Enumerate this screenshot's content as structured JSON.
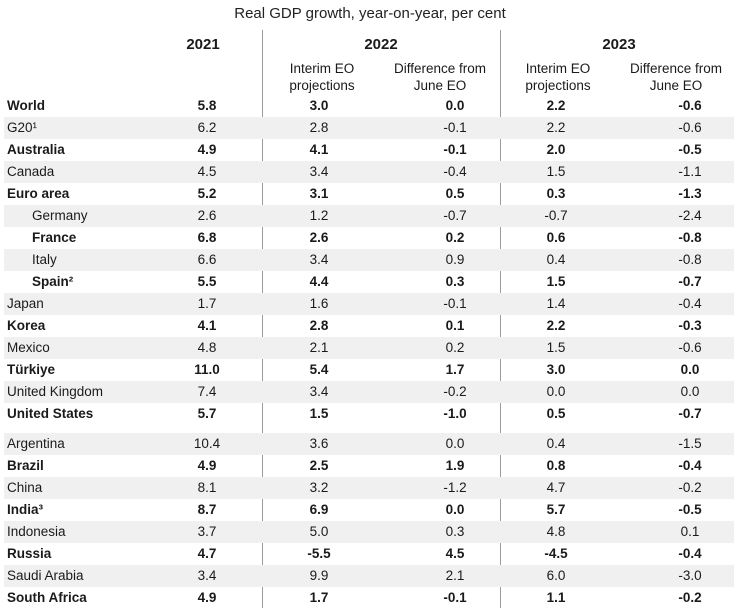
{
  "title": "Real GDP growth, year-on-year, per cent",
  "headers": {
    "y2021": "2021",
    "y2022": "2022",
    "y2023": "2023",
    "interim_2022": [
      "Interim EO",
      "projections"
    ],
    "diff_2022": [
      "Difference from",
      "June EO"
    ],
    "interim_2023": [
      "Interim EO",
      "projections"
    ],
    "diff_2023": [
      "Difference from",
      "June EO"
    ]
  },
  "rows": [
    {
      "name": "World",
      "bold": true,
      "indent": false,
      "v2021": "5.8",
      "i22": "3.0",
      "d22": "0.0",
      "i23": "2.2",
      "d23": "-0.6"
    },
    {
      "name": "G20¹",
      "bold": false,
      "indent": false,
      "v2021": "6.2",
      "i22": "2.8",
      "d22": "-0.1",
      "i23": "2.2",
      "d23": "-0.6"
    },
    {
      "name": "Australia",
      "bold": true,
      "indent": false,
      "v2021": "4.9",
      "i22": "4.1",
      "d22": "-0.1",
      "i23": "2.0",
      "d23": "-0.5"
    },
    {
      "name": "Canada",
      "bold": false,
      "indent": false,
      "v2021": "4.5",
      "i22": "3.4",
      "d22": "-0.4",
      "i23": "1.5",
      "d23": "-1.1"
    },
    {
      "name": "Euro area",
      "bold": true,
      "indent": false,
      "v2021": "5.2",
      "i22": "3.1",
      "d22": "0.5",
      "i23": "0.3",
      "d23": "-1.3"
    },
    {
      "name": "Germany",
      "bold": false,
      "indent": true,
      "v2021": "2.6",
      "i22": "1.2",
      "d22": "-0.7",
      "i23": "-0.7",
      "d23": "-2.4"
    },
    {
      "name": "France",
      "bold": true,
      "indent": true,
      "v2021": "6.8",
      "i22": "2.6",
      "d22": "0.2",
      "i23": "0.6",
      "d23": "-0.8"
    },
    {
      "name": "Italy",
      "bold": false,
      "indent": true,
      "v2021": "6.6",
      "i22": "3.4",
      "d22": "0.9",
      "i23": "0.4",
      "d23": "-0.8"
    },
    {
      "name": "Spain²",
      "bold": true,
      "indent": true,
      "v2021": "5.5",
      "i22": "4.4",
      "d22": "0.3",
      "i23": "1.5",
      "d23": "-0.7"
    },
    {
      "name": "Japan",
      "bold": false,
      "indent": false,
      "v2021": "1.7",
      "i22": "1.6",
      "d22": "-0.1",
      "i23": "1.4",
      "d23": "-0.4"
    },
    {
      "name": "Korea",
      "bold": true,
      "indent": false,
      "v2021": "4.1",
      "i22": "2.8",
      "d22": "0.1",
      "i23": "2.2",
      "d23": "-0.3"
    },
    {
      "name": "Mexico",
      "bold": false,
      "indent": false,
      "v2021": "4.8",
      "i22": "2.1",
      "d22": "0.2",
      "i23": "1.5",
      "d23": "-0.6"
    },
    {
      "name": "Türkiye",
      "bold": true,
      "indent": false,
      "v2021": "11.0",
      "i22": "5.4",
      "d22": "1.7",
      "i23": "3.0",
      "d23": "0.0"
    },
    {
      "name": "United Kingdom",
      "bold": false,
      "indent": false,
      "v2021": "7.4",
      "i22": "3.4",
      "d22": "-0.2",
      "i23": "0.0",
      "d23": "0.0"
    },
    {
      "name": "United States",
      "bold": true,
      "indent": false,
      "v2021": "5.7",
      "i22": "1.5",
      "d22": "-1.0",
      "i23": "0.5",
      "d23": "-0.7"
    },
    {
      "name": "Argentina",
      "bold": false,
      "indent": false,
      "v2021": "10.4",
      "i22": "3.6",
      "d22": "0.0",
      "i23": "0.4",
      "d23": "-1.5"
    },
    {
      "name": "Brazil",
      "bold": true,
      "indent": false,
      "v2021": "4.9",
      "i22": "2.5",
      "d22": "1.9",
      "i23": "0.8",
      "d23": "-0.4"
    },
    {
      "name": "China",
      "bold": false,
      "indent": false,
      "v2021": "8.1",
      "i22": "3.2",
      "d22": "-1.2",
      "i23": "4.7",
      "d23": "-0.2"
    },
    {
      "name": "India³",
      "bold": true,
      "indent": false,
      "v2021": "8.7",
      "i22": "6.9",
      "d22": "0.0",
      "i23": "5.7",
      "d23": "-0.5"
    },
    {
      "name": "Indonesia",
      "bold": false,
      "indent": false,
      "v2021": "3.7",
      "i22": "5.0",
      "d22": "0.3",
      "i23": "4.8",
      "d23": "0.1"
    },
    {
      "name": "Russia",
      "bold": true,
      "indent": false,
      "v2021": "4.7",
      "i22": "-5.5",
      "d22": "4.5",
      "i23": "-4.5",
      "d23": "-0.4"
    },
    {
      "name": "Saudi Arabia",
      "bold": false,
      "indent": false,
      "v2021": "3.4",
      "i22": "9.9",
      "d22": "2.1",
      "i23": "6.0",
      "d23": "-3.0"
    },
    {
      "name": "South Africa",
      "bold": true,
      "indent": false,
      "v2021": "4.9",
      "i22": "1.7",
      "d22": "-0.1",
      "i23": "1.1",
      "d23": "-0.2"
    }
  ]
}
